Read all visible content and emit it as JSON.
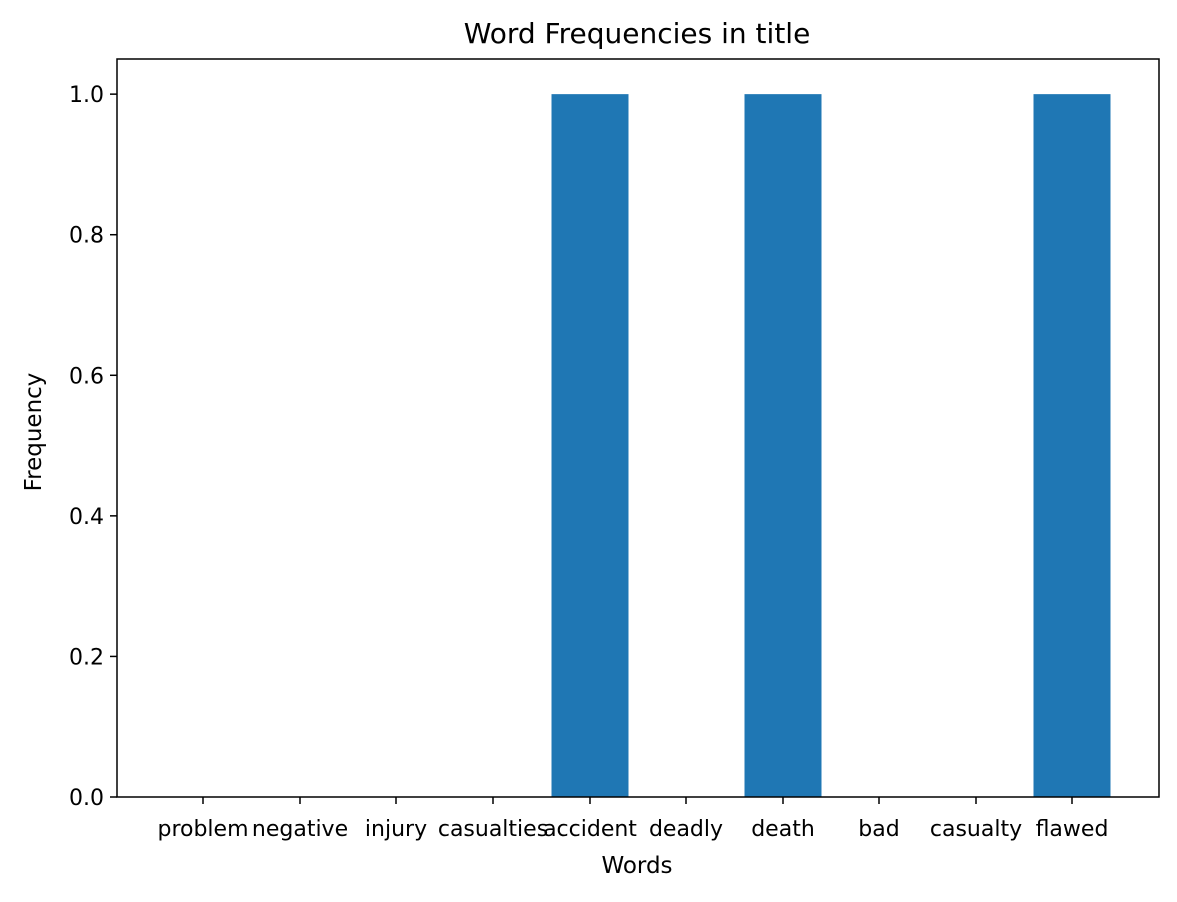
{
  "chart_data": {
    "type": "bar",
    "title": "Word Frequencies in title",
    "xlabel": "Words",
    "ylabel": "Frequency",
    "categories": [
      "problem",
      "negative",
      "injury",
      "casualties",
      "accident",
      "deadly",
      "death",
      "bad",
      "casualty",
      "flawed"
    ],
    "values": [
      0,
      0,
      0,
      0,
      1,
      0,
      1,
      0,
      0,
      1
    ],
    "ylim": [
      0,
      1.05
    ],
    "yticks": [
      "0.0",
      "0.2",
      "0.4",
      "0.6",
      "0.8",
      "1.0"
    ],
    "grid": false,
    "bar_color": "#1f77b4"
  }
}
